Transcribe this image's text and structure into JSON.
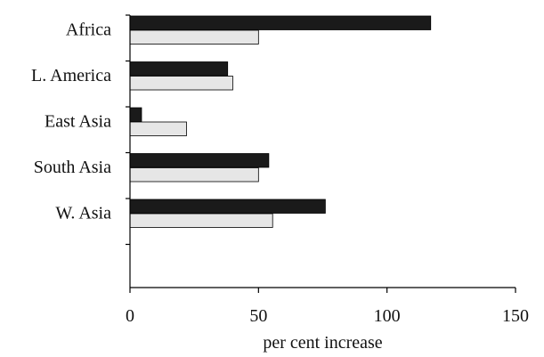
{
  "chart_data": {
    "type": "bar",
    "orientation": "horizontal",
    "categories": [
      "Africa",
      "L. America",
      "East Asia",
      "South Asia",
      "W. Asia"
    ],
    "series": [
      {
        "values": [
          117,
          38,
          4.5,
          54,
          76
        ],
        "color": "#1a1a1a"
      },
      {
        "values": [
          50,
          40,
          22,
          50,
          55.5
        ],
        "color": "#e6e6e6"
      }
    ],
    "xlabel": "per cent increase",
    "ylabel": "",
    "title": "",
    "xlim": [
      0,
      150
    ],
    "xticks": [
      0,
      50,
      100,
      150
    ],
    "grid": false,
    "legend": false
  }
}
